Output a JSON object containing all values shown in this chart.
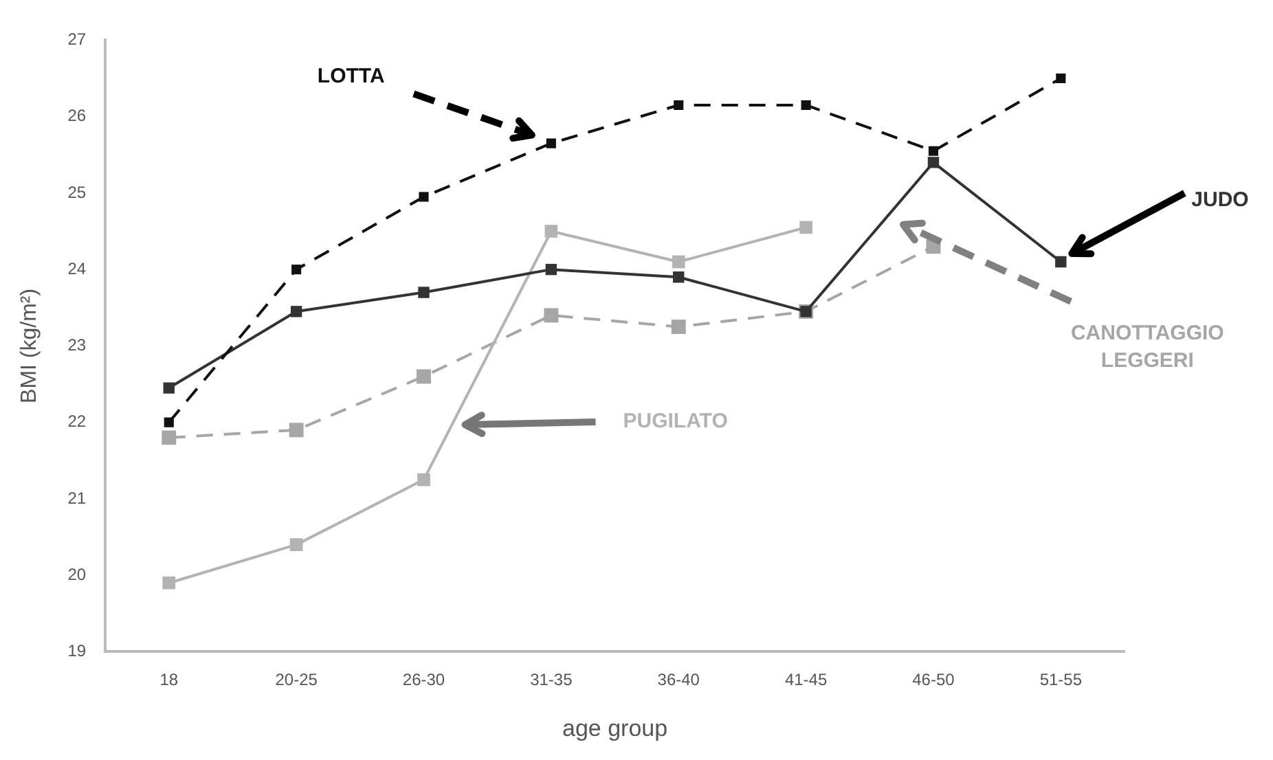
{
  "chart_data": {
    "type": "line",
    "xlabel": "age group",
    "ylabel": "BMI (kg/m²)",
    "categories": [
      "18",
      "20-25",
      "26-30",
      "31-35",
      "36-40",
      "41-45",
      "46-50",
      "51-55"
    ],
    "ylim": [
      19,
      27
    ],
    "yticks": [
      19,
      20,
      21,
      22,
      23,
      24,
      25,
      26,
      27
    ],
    "grid": false,
    "legend": false,
    "marker": "square",
    "series": [
      {
        "name": "LOTTA",
        "color": "#111111",
        "line_style": "dashed",
        "values": [
          22.0,
          24.0,
          24.95,
          25.65,
          26.15,
          26.15,
          25.55,
          26.5
        ]
      },
      {
        "name": "JUDO",
        "color": "#333333",
        "line_style": "solid",
        "values": [
          22.45,
          23.45,
          23.7,
          24.0,
          23.9,
          23.45,
          25.4,
          24.1
        ]
      },
      {
        "name": "PUGILATO",
        "color": "#b3b3b3",
        "line_style": "solid",
        "values": [
          19.9,
          20.4,
          21.25,
          24.5,
          24.1,
          24.55,
          null,
          null
        ]
      },
      {
        "name": "CANOTTAGGIO\nLEGGERI",
        "color": "#a6a6a6",
        "line_style": "dashed",
        "values": [
          21.8,
          21.9,
          22.6,
          23.4,
          23.25,
          23.45,
          24.3,
          null
        ]
      }
    ]
  }
}
